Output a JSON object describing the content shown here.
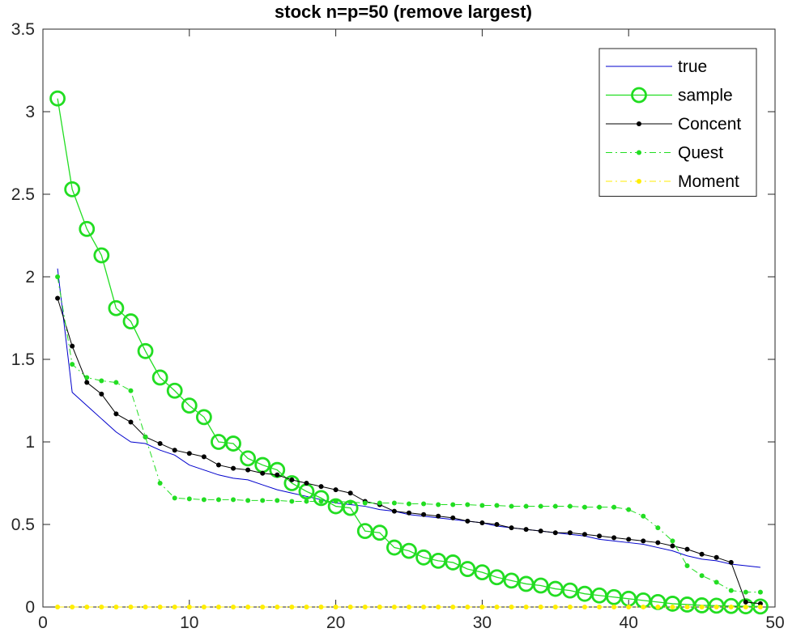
{
  "chart_data": {
    "type": "line",
    "title": "stock n=p=50 (remove largest)",
    "xlabel": "",
    "ylabel": "",
    "xlim": [
      0,
      50
    ],
    "ylim": [
      0,
      3.5
    ],
    "xticks": [
      0,
      10,
      20,
      30,
      40,
      50
    ],
    "yticks": [
      0,
      0.5,
      1,
      1.5,
      2,
      2.5,
      3,
      3.5
    ],
    "xtick_labels": [
      "0",
      "10",
      "20",
      "30",
      "40",
      "50"
    ],
    "ytick_labels": [
      "0",
      "0.5",
      "1",
      "1.5",
      "2",
      "2.5",
      "3",
      "3.5"
    ],
    "grid": false,
    "legend_position": "top-right",
    "x": [
      1,
      2,
      3,
      4,
      5,
      6,
      7,
      8,
      9,
      10,
      11,
      12,
      13,
      14,
      15,
      16,
      17,
      18,
      19,
      20,
      21,
      22,
      23,
      24,
      25,
      26,
      27,
      28,
      29,
      30,
      31,
      32,
      33,
      34,
      35,
      36,
      37,
      38,
      39,
      40,
      41,
      42,
      43,
      44,
      45,
      46,
      47,
      48,
      49
    ],
    "series": [
      {
        "name": "true",
        "color": "#0000cc",
        "line": "solid",
        "marker": "none",
        "values": [
          2.05,
          1.3,
          1.22,
          1.14,
          1.06,
          1.0,
          0.99,
          0.95,
          0.92,
          0.86,
          0.83,
          0.8,
          0.78,
          0.77,
          0.74,
          0.71,
          0.69,
          0.67,
          0.65,
          0.63,
          0.62,
          0.61,
          0.59,
          0.58,
          0.56,
          0.55,
          0.54,
          0.53,
          0.52,
          0.51,
          0.49,
          0.48,
          0.47,
          0.46,
          0.45,
          0.44,
          0.43,
          0.41,
          0.4,
          0.39,
          0.38,
          0.36,
          0.34,
          0.31,
          0.29,
          0.28,
          0.26,
          0.25,
          0.24
        ]
      },
      {
        "name": "sample",
        "color": "#22dd22",
        "line": "solid",
        "marker": "circle",
        "values": [
          3.08,
          2.53,
          2.29,
          2.13,
          1.81,
          1.73,
          1.55,
          1.39,
          1.31,
          1.22,
          1.15,
          1.0,
          0.99,
          0.9,
          0.86,
          0.83,
          0.75,
          0.7,
          0.66,
          0.61,
          0.6,
          0.46,
          0.45,
          0.36,
          0.34,
          0.3,
          0.28,
          0.27,
          0.23,
          0.21,
          0.18,
          0.16,
          0.14,
          0.13,
          0.11,
          0.1,
          0.08,
          0.07,
          0.06,
          0.05,
          0.04,
          0.03,
          0.02,
          0.015,
          0.01,
          0.008,
          0.006,
          0.004,
          0.003
        ]
      },
      {
        "name": "Concent",
        "color": "#000000",
        "line": "solid",
        "marker": "dot",
        "values": [
          1.87,
          1.58,
          1.36,
          1.29,
          1.17,
          1.12,
          1.03,
          0.99,
          0.95,
          0.93,
          0.91,
          0.86,
          0.84,
          0.83,
          0.81,
          0.8,
          0.77,
          0.75,
          0.73,
          0.71,
          0.69,
          0.64,
          0.62,
          0.58,
          0.57,
          0.56,
          0.55,
          0.54,
          0.52,
          0.51,
          0.5,
          0.48,
          0.47,
          0.46,
          0.45,
          0.45,
          0.44,
          0.43,
          0.42,
          0.41,
          0.4,
          0.39,
          0.37,
          0.35,
          0.32,
          0.3,
          0.27,
          0.03,
          0.02
        ]
      },
      {
        "name": "Quest",
        "color": "#22dd22",
        "line": "dashdot",
        "marker": "dot",
        "values": [
          2.0,
          1.47,
          1.39,
          1.37,
          1.36,
          1.31,
          1.03,
          0.75,
          0.66,
          0.655,
          0.65,
          0.65,
          0.65,
          0.645,
          0.645,
          0.645,
          0.64,
          0.64,
          0.64,
          0.64,
          0.635,
          0.63,
          0.63,
          0.63,
          0.625,
          0.625,
          0.62,
          0.62,
          0.62,
          0.615,
          0.615,
          0.61,
          0.61,
          0.61,
          0.61,
          0.61,
          0.605,
          0.605,
          0.605,
          0.59,
          0.55,
          0.48,
          0.4,
          0.25,
          0.19,
          0.15,
          0.1,
          0.09,
          0.09
        ]
      },
      {
        "name": "Moment",
        "color": "#ffee00",
        "line": "dashdot",
        "marker": "dot",
        "values": [
          0,
          0,
          0,
          0,
          0,
          0,
          0,
          0,
          0,
          0,
          0,
          0,
          0,
          0,
          0,
          0,
          0,
          0,
          0,
          0,
          0,
          0,
          0,
          0,
          0,
          0,
          0,
          0,
          0,
          0,
          0,
          0,
          0,
          0,
          0,
          0,
          0,
          0,
          0,
          0,
          0,
          0,
          0,
          0,
          0,
          0,
          0,
          0,
          0
        ]
      }
    ]
  }
}
